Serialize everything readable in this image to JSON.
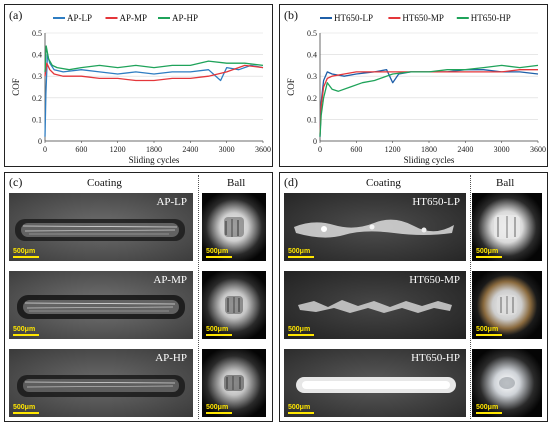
{
  "chart_data": [
    {
      "type": "line",
      "panel_label": "(a)",
      "xlabel": "Sliding cycles",
      "ylabel": "COF",
      "xlim": [
        0,
        3600
      ],
      "ylim": [
        0,
        0.5
      ],
      "xticks": [
        "0",
        "600",
        "1200",
        "1800",
        "2400",
        "3000",
        "3600"
      ],
      "yticks": [
        "0",
        "0.1",
        "0.2",
        "0.3",
        "0.4",
        "0.5"
      ],
      "grid": true,
      "legend_position": "top",
      "series": [
        {
          "name": "AP-LP",
          "color": "#2e7dc2",
          "x": [
            0,
            15,
            40,
            80,
            150,
            300,
            600,
            900,
            1200,
            1500,
            1800,
            2100,
            2400,
            2700,
            2900,
            3000,
            3200,
            3400,
            3600
          ],
          "y": [
            0.02,
            0.22,
            0.4,
            0.36,
            0.33,
            0.32,
            0.33,
            0.32,
            0.31,
            0.32,
            0.31,
            0.32,
            0.32,
            0.33,
            0.28,
            0.34,
            0.33,
            0.35,
            0.34
          ]
        },
        {
          "name": "AP-MP",
          "color": "#e4363a",
          "x": [
            0,
            30,
            80,
            150,
            300,
            600,
            900,
            1200,
            1500,
            1800,
            2100,
            2400,
            2700,
            3000,
            3300,
            3600
          ],
          "y": [
            0.3,
            0.36,
            0.33,
            0.31,
            0.3,
            0.3,
            0.29,
            0.29,
            0.28,
            0.28,
            0.29,
            0.29,
            0.3,
            0.32,
            0.35,
            0.34
          ]
        },
        {
          "name": "AP-HP",
          "color": "#1fa35a",
          "x": [
            0,
            20,
            60,
            120,
            200,
            400,
            600,
            900,
            1200,
            1500,
            1800,
            2100,
            2400,
            2700,
            3000,
            3300,
            3600
          ],
          "y": [
            0.32,
            0.44,
            0.38,
            0.35,
            0.34,
            0.33,
            0.34,
            0.35,
            0.34,
            0.35,
            0.34,
            0.35,
            0.35,
            0.37,
            0.36,
            0.36,
            0.35
          ]
        }
      ]
    },
    {
      "type": "line",
      "panel_label": "(b)",
      "xlabel": "Sliding cycles",
      "ylabel": "COF",
      "xlim": [
        0,
        3600
      ],
      "ylim": [
        0,
        0.5
      ],
      "xticks": [
        "0",
        "600",
        "1200",
        "1800",
        "2400",
        "3000",
        "3600"
      ],
      "yticks": [
        "0",
        "0.1",
        "0.2",
        "0.3",
        "0.4",
        "0.5"
      ],
      "grid": true,
      "legend_position": "top",
      "series": [
        {
          "name": "HT650-LP",
          "color": "#1f5fa8",
          "x": [
            0,
            20,
            60,
            120,
            200,
            400,
            600,
            900,
            1100,
            1200,
            1300,
            1500,
            1800,
            2100,
            2400,
            2700,
            3000,
            3300,
            3600
          ],
          "y": [
            0.02,
            0.18,
            0.28,
            0.32,
            0.31,
            0.3,
            0.31,
            0.32,
            0.33,
            0.27,
            0.31,
            0.32,
            0.32,
            0.32,
            0.33,
            0.33,
            0.32,
            0.32,
            0.31
          ]
        },
        {
          "name": "HT650-MP",
          "color": "#e4363a",
          "x": [
            0,
            20,
            60,
            120,
            200,
            400,
            600,
            900,
            1200,
            1500,
            1800,
            2100,
            2400,
            2700,
            3000,
            3300,
            3600
          ],
          "y": [
            0.03,
            0.16,
            0.25,
            0.29,
            0.3,
            0.31,
            0.32,
            0.32,
            0.32,
            0.32,
            0.32,
            0.32,
            0.32,
            0.32,
            0.32,
            0.33,
            0.33
          ]
        },
        {
          "name": "HT650-HP",
          "color": "#1fa35a",
          "x": [
            0,
            20,
            60,
            120,
            200,
            300,
            500,
            700,
            900,
            1200,
            1500,
            1800,
            2100,
            2400,
            2700,
            3000,
            3300,
            3600
          ],
          "y": [
            0.02,
            0.12,
            0.2,
            0.27,
            0.24,
            0.23,
            0.25,
            0.27,
            0.28,
            0.31,
            0.32,
            0.32,
            0.33,
            0.33,
            0.34,
            0.35,
            0.34,
            0.35
          ]
        }
      ]
    }
  ],
  "panels": {
    "c": {
      "label": "(c)",
      "coating_header": "Coating",
      "ball_header": "Ball",
      "rows": [
        {
          "coating_tag": "AP-LP",
          "scale": "500μm"
        },
        {
          "coating_tag": "AP-MP",
          "scale": "500μm"
        },
        {
          "coating_tag": "AP-HP",
          "scale": "500μm"
        }
      ]
    },
    "d": {
      "label": "(d)",
      "coating_header": "Coating",
      "ball_header": "Ball",
      "rows": [
        {
          "coating_tag": "HT650-LP",
          "scale": "500μm"
        },
        {
          "coating_tag": "HT650-MP",
          "scale": "500μm"
        },
        {
          "coating_tag": "HT650-HP",
          "scale": "500μm"
        }
      ]
    }
  }
}
